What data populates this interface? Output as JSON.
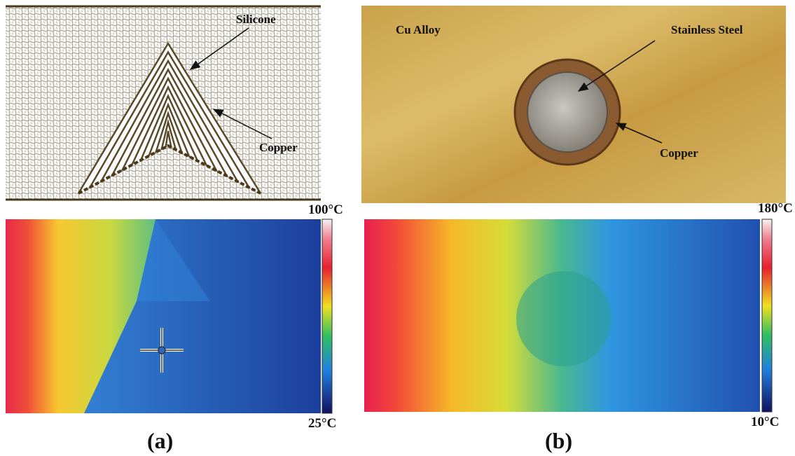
{
  "panels": [
    {
      "label": "(a)",
      "schematic": {
        "annotations": [
          "Silicone",
          "Copper"
        ]
      },
      "thermal": {
        "max_label": "100°C",
        "min_label": "25°C"
      }
    },
    {
      "label": "(b)",
      "photo": {
        "annotations": [
          "Cu Alloy",
          "Stainless Steel",
          "Copper"
        ]
      },
      "thermal": {
        "max_label": "180°C",
        "min_label": "10°C"
      }
    }
  ]
}
